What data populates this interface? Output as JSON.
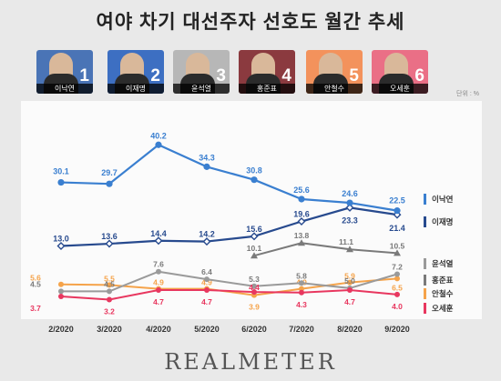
{
  "title": "여야 차기 대선주자 선호도 월간 추세",
  "unit": "단위 : %",
  "logo": "REALMETER",
  "cards": [
    {
      "rank": "1",
      "name": "이낙연",
      "bg": "#4a74b6"
    },
    {
      "rank": "2",
      "name": "이재명",
      "bg": "#3d6fc2"
    },
    {
      "rank": "3",
      "name": "윤석열",
      "bg": "#b7b7b7"
    },
    {
      "rank": "4",
      "name": "홍준표",
      "bg": "#8b3a3f"
    },
    {
      "rank": "5",
      "name": "안철수",
      "bg": "#f3925c"
    },
    {
      "rank": "6",
      "name": "오세훈",
      "bg": "#ea6f86"
    }
  ],
  "chart_data": {
    "type": "line",
    "categories": [
      "2/2020",
      "3/2020",
      "4/2020",
      "5/2020",
      "6/2020",
      "7/2020",
      "8/2020",
      "9/2020"
    ],
    "legend_position": "right",
    "series": [
      {
        "name": "이낙연",
        "color": "#3a7fd0",
        "values": [
          30.1,
          29.7,
          40.2,
          34.3,
          30.8,
          25.6,
          24.6,
          22.5
        ],
        "labels": [
          "30.1",
          "29.7",
          "40.2",
          "34.3",
          "30.8",
          "25.6",
          "24.6",
          "22.5"
        ]
      },
      {
        "name": "이재명",
        "color": "#274a8e",
        "values": [
          13.0,
          13.6,
          14.4,
          14.2,
          15.6,
          19.6,
          23.3,
          21.4
        ],
        "labels": [
          "13.0",
          "13.6",
          "14.4",
          "14.2",
          "15.6",
          "19.6",
          "23.3",
          "21.4"
        ]
      },
      {
        "name": "윤석열",
        "color": "#9a9a9a",
        "values": [
          4.5,
          4.5,
          7.6,
          6.4,
          5.3,
          5.8,
          5.0,
          7.2
        ],
        "labels": [
          "4.5",
          "4.5",
          "7.6",
          "6.4",
          "5.3",
          "5.8",
          "5.0",
          "7.2"
        ]
      },
      {
        "name": "홍준표",
        "color": "#7a7a7a",
        "values": [
          null,
          null,
          null,
          null,
          10.1,
          13.8,
          11.1,
          10.5
        ],
        "labels": [
          "",
          "",
          "",
          "",
          "10.1",
          "13.8",
          "11.1",
          "10.5"
        ]
      },
      {
        "name": "안철수",
        "color": "#f5a34a",
        "values": [
          5.6,
          5.5,
          4.9,
          4.9,
          3.9,
          4.9,
          5.9,
          6.5
        ],
        "labels": [
          "5.6",
          "5.5",
          "4.9",
          "4.9",
          "3.9",
          "4.9",
          "5.9",
          "6.5"
        ]
      },
      {
        "name": "오세훈",
        "color": "#e8375f",
        "values": [
          3.7,
          3.2,
          4.7,
          4.7,
          4.4,
          4.3,
          4.7,
          4.0
        ],
        "labels": [
          "3.7",
          "3.2",
          "4.7",
          "4.7",
          "4.4",
          "4.3",
          "4.7",
          "4.0"
        ]
      }
    ]
  }
}
